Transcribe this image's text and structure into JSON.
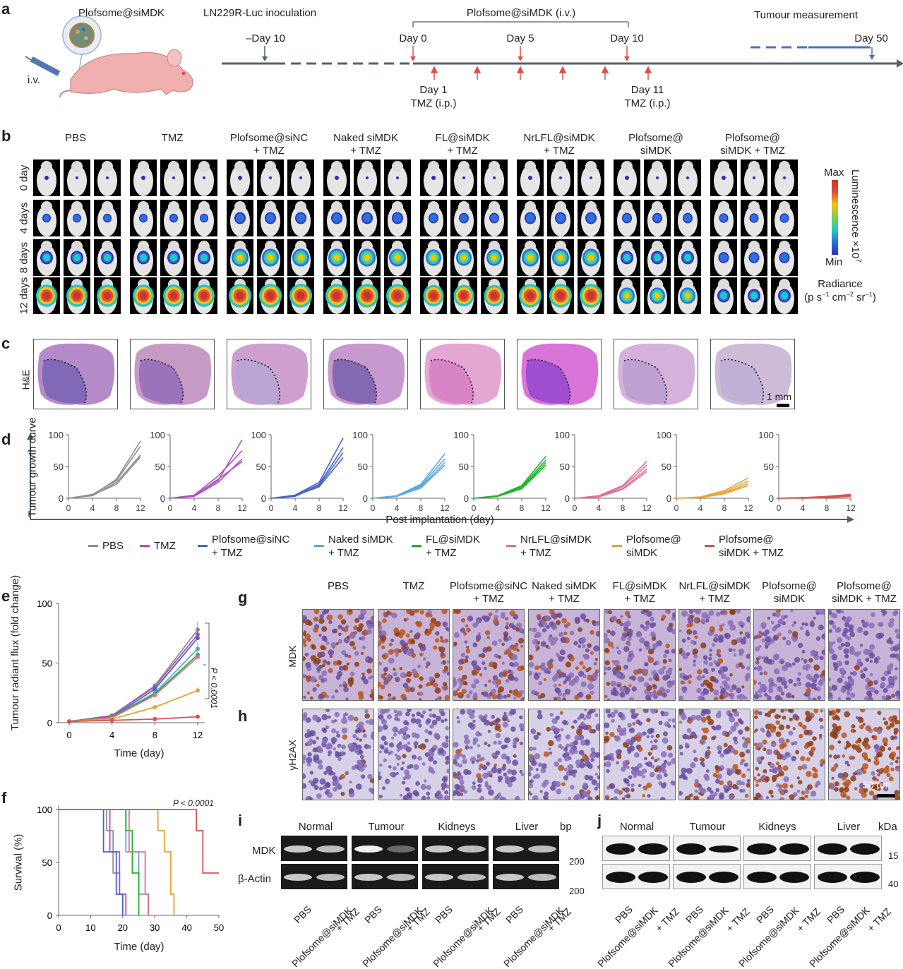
{
  "panel_a": {
    "label": "a",
    "product": "Plofsome@siMDK",
    "iv": "i.v.",
    "inoculation": "LN229R-Luc inoculation",
    "treatment": "Plofsome@siMDK (i.v.)",
    "measurement": "Tumour measurement",
    "days": [
      "–Day 10",
      "Day 0",
      "Day 5",
      "Day 10",
      "Day 50"
    ],
    "tmz_start": [
      "Day 1",
      "TMZ (i.p.)"
    ],
    "tmz_end": [
      "Day 11",
      "TMZ (i.p.)"
    ]
  },
  "groups": [
    {
      "l1": "PBS",
      "l2": ""
    },
    {
      "l1": "TMZ",
      "l2": ""
    },
    {
      "l1": "Plofsome@siNC",
      "l2": "+ TMZ"
    },
    {
      "l1": "Naked siMDK",
      "l2": "+ TMZ"
    },
    {
      "l1": "FL@siMDK",
      "l2": "+ TMZ"
    },
    {
      "l1": "NrLFL@siMDK",
      "l2": "+ TMZ"
    },
    {
      "l1": "Plofsome@",
      "l2": "siMDK"
    },
    {
      "l1": "Plofsome@",
      "l2": "siMDK + TMZ"
    }
  ],
  "panel_b": {
    "label": "b",
    "rows": [
      "0 day",
      "4 days",
      "8 days",
      "12 days"
    ],
    "scale_max": "Max",
    "scale_min": "Min",
    "scale_title": "Luminescence ×10",
    "scale_exp": "7",
    "radiance": "Radiance",
    "radiance_unit_parts": [
      "(p s",
      "−1",
      " cm",
      "−2",
      " sr",
      "−1",
      ")"
    ]
  },
  "panel_c": {
    "label": "c",
    "stain": "H&E",
    "scale": "1 mm"
  },
  "panel_d": {
    "label": "d",
    "ylabel": "Tumour growth curve",
    "xlabel": "Post implantation (day)",
    "chart_data": {
      "type": "line",
      "x": [
        0,
        4,
        8,
        12
      ],
      "ylim": [
        0,
        100
      ],
      "yticks": [
        0,
        50,
        100
      ],
      "xticks": [
        0,
        4,
        8,
        12
      ],
      "panels": [
        {
          "group": "PBS",
          "color": "#8e8e8e",
          "curves": [
            [
              0,
              5,
              30,
              90
            ],
            [
              0,
              6,
              28,
              82
            ],
            [
              0,
              4,
              25,
              68
            ],
            [
              0,
              5,
              22,
              65
            ]
          ]
        },
        {
          "group": "TMZ",
          "color": "#b04fc4",
          "curves": [
            [
              0,
              4,
              28,
              92
            ],
            [
              0,
              5,
              35,
              75
            ],
            [
              0,
              3,
              25,
              62
            ],
            [
              0,
              4,
              30,
              58
            ]
          ]
        },
        {
          "group": "Plofsome@siNC + TMZ",
          "color": "#4b63c8",
          "curves": [
            [
              0,
              5,
              25,
              95
            ],
            [
              0,
              4,
              22,
              80
            ],
            [
              0,
              3,
              20,
              72
            ],
            [
              0,
              4,
              18,
              64
            ]
          ]
        },
        {
          "group": "Naked siMDK + TMZ",
          "color": "#5aa9dd",
          "curves": [
            [
              0,
              4,
              22,
              70
            ],
            [
              0,
              4,
              20,
              62
            ],
            [
              0,
              3,
              18,
              56
            ],
            [
              0,
              3,
              16,
              52
            ]
          ]
        },
        {
          "group": "FL@siMDK + TMZ",
          "color": "#22b22e",
          "curves": [
            [
              0,
              4,
              20,
              66
            ],
            [
              0,
              4,
              18,
              60
            ],
            [
              0,
              3,
              16,
              56
            ],
            [
              0,
              3,
              15,
              52
            ]
          ]
        },
        {
          "group": "NrLFL@siMDK + TMZ",
          "color": "#e46f98",
          "curves": [
            [
              0,
              4,
              20,
              58
            ],
            [
              0,
              3,
              18,
              52
            ],
            [
              0,
              3,
              15,
              46
            ],
            [
              0,
              2,
              14,
              42
            ]
          ]
        },
        {
          "group": "Plofsome@ siMDK",
          "color": "#e6a534",
          "curves": [
            [
              0,
              2,
              12,
              32
            ],
            [
              0,
              2,
              10,
              27
            ],
            [
              0,
              1,
              8,
              23
            ],
            [
              0,
              1,
              7,
              20
            ]
          ]
        },
        {
          "group": "Plofsome@ siMDK + TMZ",
          "color": "#d9534f",
          "curves": [
            [
              0,
              1,
              3,
              6
            ],
            [
              0,
              1,
              2,
              5
            ],
            [
              0,
              1,
              2,
              4
            ],
            [
              0,
              0,
              1,
              3
            ]
          ]
        }
      ]
    }
  },
  "legend": [
    {
      "l1": "PBS",
      "l2": "",
      "color": "#8e8e8e"
    },
    {
      "l1": "TMZ",
      "l2": "",
      "color": "#b04fc4"
    },
    {
      "l1": "Plofsome@siNC",
      "l2": "+ TMZ",
      "color": "#4b63c8"
    },
    {
      "l1": "Naked siMDK",
      "l2": "+ TMZ",
      "color": "#5aa9dd"
    },
    {
      "l1": "FL@siMDK",
      "l2": "+ TMZ",
      "color": "#22b22e"
    },
    {
      "l1": "NrLFL@siMDK",
      "l2": "+ TMZ",
      "color": "#e46f98"
    },
    {
      "l1": "Plofsome@",
      "l2": "siMDK",
      "color": "#e6a534"
    },
    {
      "l1": "Plofsome@",
      "l2": "siMDK + TMZ",
      "color": "#d9534f"
    }
  ],
  "panel_e": {
    "label": "e",
    "ylabel": "Tumour radiant flux (fold change)",
    "xlabel": "Time (day)",
    "pvalue": "P < 0.0001",
    "chart_data": {
      "type": "line",
      "x": [
        0,
        4,
        8,
        12
      ],
      "xticks": [
        0,
        4,
        8,
        12
      ],
      "yticks": [
        0,
        50,
        100
      ],
      "ylim": [
        0,
        100
      ],
      "series": [
        {
          "values": [
            1,
            6,
            31,
            78
          ],
          "color": "#8e8e8e"
        },
        {
          "values": [
            1,
            6,
            30,
            74
          ],
          "color": "#b04fc4"
        },
        {
          "values": [
            1,
            5,
            28,
            71
          ],
          "color": "#4b63c8"
        },
        {
          "values": [
            1,
            5,
            25,
            62
          ],
          "color": "#5aa9dd"
        },
        {
          "values": [
            1,
            5,
            24,
            57
          ],
          "color": "#22b22e"
        },
        {
          "values": [
            1,
            4,
            23,
            55
          ],
          "color": "#e46f98"
        },
        {
          "values": [
            1,
            3,
            13,
            27
          ],
          "color": "#e6a534"
        },
        {
          "values": [
            1,
            2,
            3,
            5
          ],
          "color": "#d9534f"
        }
      ]
    }
  },
  "panel_f": {
    "label": "f",
    "ylabel": "Survival (%)",
    "xlabel": "Time (day)",
    "pvalue": "P < 0.0001",
    "chart_data": {
      "type": "line",
      "xlim": [
        0,
        50
      ],
      "ylim": [
        0,
        100
      ],
      "xticks": [
        0,
        10,
        20,
        30,
        40,
        50
      ],
      "yticks": [
        0,
        50,
        100
      ],
      "series": [
        {
          "color": "#8e8e8e",
          "steps": [
            [
              0,
              100
            ],
            [
              15,
              100
            ],
            [
              15,
              80
            ],
            [
              17,
              80
            ],
            [
              17,
              40
            ],
            [
              19,
              40
            ],
            [
              19,
              20
            ],
            [
              20,
              20
            ],
            [
              20,
              0
            ]
          ]
        },
        {
          "color": "#b04fc4",
          "steps": [
            [
              0,
              100
            ],
            [
              16,
              100
            ],
            [
              16,
              60
            ],
            [
              19,
              60
            ],
            [
              19,
              20
            ],
            [
              21,
              20
            ],
            [
              21,
              0
            ]
          ]
        },
        {
          "color": "#4b63c8",
          "steps": [
            [
              0,
              100
            ],
            [
              14,
              100
            ],
            [
              14,
              60
            ],
            [
              18,
              60
            ],
            [
              18,
              20
            ],
            [
              20,
              20
            ],
            [
              20,
              0
            ]
          ]
        },
        {
          "color": "#5aa9dd",
          "steps": [
            [
              0,
              100
            ],
            [
              21,
              100
            ],
            [
              21,
              60
            ],
            [
              25,
              60
            ],
            [
              25,
              20
            ],
            [
              28,
              20
            ],
            [
              28,
              0
            ]
          ]
        },
        {
          "color": "#22b22e",
          "steps": [
            [
              0,
              100
            ],
            [
              21,
              100
            ],
            [
              21,
              80
            ],
            [
              23,
              80
            ],
            [
              23,
              40
            ],
            [
              25,
              40
            ],
            [
              25,
              0
            ]
          ]
        },
        {
          "color": "#e46f98",
          "steps": [
            [
              0,
              100
            ],
            [
              22,
              100
            ],
            [
              22,
              60
            ],
            [
              27,
              60
            ],
            [
              27,
              20
            ],
            [
              28,
              20
            ],
            [
              28,
              0
            ]
          ]
        },
        {
          "color": "#e6a534",
          "steps": [
            [
              0,
              100
            ],
            [
              31,
              100
            ],
            [
              31,
              80
            ],
            [
              33,
              80
            ],
            [
              33,
              60
            ],
            [
              35,
              60
            ],
            [
              35,
              20
            ],
            [
              36,
              20
            ],
            [
              36,
              0
            ]
          ]
        },
        {
          "color": "#d9534f",
          "steps": [
            [
              0,
              100
            ],
            [
              43,
              100
            ],
            [
              43,
              80
            ],
            [
              45,
              80
            ],
            [
              45,
              40
            ],
            [
              50,
              40
            ]
          ]
        }
      ]
    }
  },
  "panel_g": {
    "label": "g",
    "row": "MDK"
  },
  "panel_h": {
    "label": "h",
    "row": "γH2AX",
    "scale": "50 μm"
  },
  "panel_i": {
    "label": "i",
    "cols": [
      "Normal",
      "Tumour",
      "Kidneys",
      "Liver"
    ],
    "unit": "bp",
    "rows": [
      "MDK",
      "β-Actin"
    ],
    "markers": [
      "200",
      "200"
    ],
    "lanes": [
      "PBS",
      "Plofsome@siMDK",
      "+ TMZ"
    ]
  },
  "panel_j": {
    "label": "j",
    "cols": [
      "Normal",
      "Tumour",
      "Kidneys",
      "Liver"
    ],
    "unit": "kDa",
    "markers": [
      "15",
      "40"
    ],
    "lanes": [
      "PBS",
      "Plofsome@siMDK",
      "+ TMZ"
    ]
  }
}
